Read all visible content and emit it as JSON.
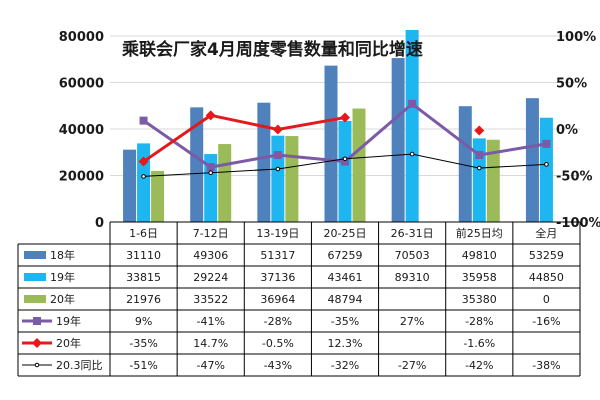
{
  "chart_data": {
    "type": "bar",
    "title": "乘联会厂家4月周度零售数量和同比增速",
    "categories": [
      "1-6日",
      "7-12日",
      "13-19日",
      "20-25日",
      "26-31日",
      "前25日均",
      "全月"
    ],
    "y_left": {
      "min": 0,
      "max": 80000,
      "ticks": [
        "0",
        "20000",
        "40000",
        "60000",
        "80000"
      ]
    },
    "y_right": {
      "min": -100,
      "max": 100,
      "ticks": [
        "-100%",
        "-50%",
        "0%",
        "50%",
        "100%"
      ]
    },
    "grid": true,
    "bar_series": [
      {
        "name": "18年",
        "color": "#4f81bd",
        "values": [
          31110,
          49306,
          51317,
          67259,
          70503,
          49810,
          53259
        ],
        "labels": [
          "31110",
          "49306",
          "51317",
          "67259",
          "70503",
          "49810",
          "53259"
        ]
      },
      {
        "name": "19年",
        "color": "#1eb6f0",
        "values": [
          33815,
          29224,
          37136,
          43461,
          89310,
          35958,
          44850
        ],
        "labels": [
          "33815",
          "29224",
          "37136",
          "43461",
          "89310",
          "35958",
          "44850"
        ]
      },
      {
        "name": "20年",
        "color": "#9bbb59",
        "values": [
          21976,
          33522,
          36964,
          48794,
          null,
          35380,
          0
        ],
        "labels": [
          "21976",
          "33522",
          "36964",
          "48794",
          "",
          "35380",
          "0"
        ]
      }
    ],
    "line_series": [
      {
        "name": "19年",
        "color": "#7b5aa6",
        "marker": "square",
        "values": [
          9,
          -41,
          -28,
          -35,
          27,
          -28,
          -16
        ],
        "labels": [
          "9%",
          "-41%",
          "-28%",
          "-35%",
          "27%",
          "-28%",
          "-16%"
        ]
      },
      {
        "name": "20年",
        "color": "#e3191c",
        "marker": "diamond",
        "values": [
          -35,
          14.7,
          -0.5,
          12.3,
          null,
          -1.6,
          null
        ],
        "labels": [
          "-35%",
          "14.7%",
          "-0.5%",
          "12.3%",
          "",
          "-1.6%",
          ""
        ]
      },
      {
        "name": "20.3同比",
        "color": "#000000",
        "marker": "circle",
        "values": [
          -51,
          -47,
          -43,
          -32,
          -27,
          -42,
          -38
        ],
        "labels": [
          "-51%",
          "-47%",
          "-43%",
          "-32%",
          "-27%",
          "-42%",
          "-38%"
        ]
      }
    ]
  }
}
